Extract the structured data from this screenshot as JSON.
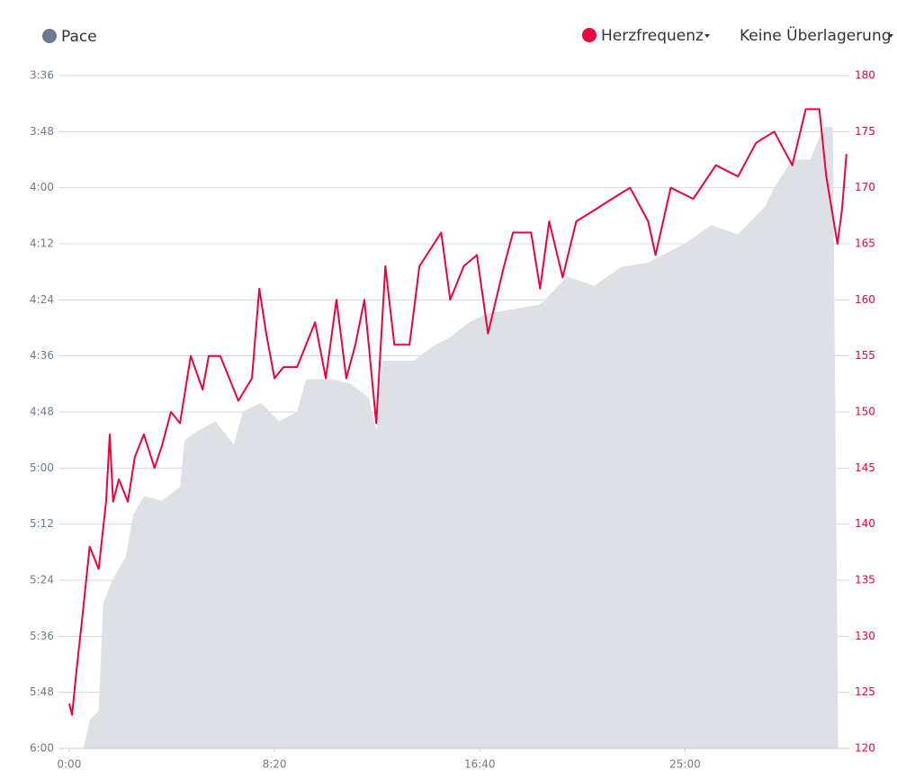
{
  "chart_data": {
    "type": "line",
    "x_ticks_label": "time",
    "xlim": [
      -26,
      1900
    ],
    "xticks": [
      {
        "value": 0,
        "label": "0:00"
      },
      {
        "value": 500,
        "label": "8:20"
      },
      {
        "value": 1000,
        "label": "16:40"
      },
      {
        "value": 1500,
        "label": "25:00"
      }
    ],
    "ylim": [
      360,
      216
    ],
    "yticks": [
      {
        "value": 216,
        "label": "3:36"
      },
      {
        "value": 228,
        "label": "3:48"
      },
      {
        "value": 240,
        "label": "4:00"
      },
      {
        "value": 252,
        "label": "4:12"
      },
      {
        "value": 264,
        "label": "4:24"
      },
      {
        "value": 276,
        "label": "4:36"
      },
      {
        "value": 288,
        "label": "4:48"
      },
      {
        "value": 300,
        "label": "5:00"
      },
      {
        "value": 312,
        "label": "5:12"
      },
      {
        "value": 324,
        "label": "5:24"
      },
      {
        "value": 336,
        "label": "5:36"
      },
      {
        "value": 348,
        "label": "5:48"
      },
      {
        "value": 360,
        "label": "6:00"
      }
    ],
    "y2lim": [
      120,
      180
    ],
    "y2ticks": [
      120,
      125,
      130,
      135,
      140,
      145,
      150,
      155,
      160,
      165,
      170,
      175,
      180
    ],
    "grid": true,
    "overlay": "Keine Überlagerung",
    "series": [
      {
        "name": "Pace",
        "color": "#6b7c8c",
        "fill": "#dde0e4",
        "area": true,
        "x": [
          35,
          50,
          72,
          83,
          105,
          138,
          156,
          182,
          226,
          270,
          281,
          314,
          357,
          401,
          423,
          467,
          511,
          555,
          577,
          642,
          686,
          730,
          748,
          763,
          840,
          884,
          928,
          971,
          1015,
          1081,
          1147,
          1213,
          1279,
          1344,
          1410,
          1498,
          1564,
          1629,
          1695,
          1717,
          1761,
          1805,
          1838,
          1860,
          1873
        ],
        "values": [
          360,
          354,
          352,
          329,
          324,
          319,
          310,
          306,
          307,
          304,
          294,
          292,
          290,
          295,
          288,
          286,
          290,
          288,
          281,
          281,
          282,
          285,
          292,
          277,
          277,
          274,
          272,
          269,
          267,
          266,
          265,
          259,
          261,
          257,
          256,
          252,
          248,
          250,
          244,
          240,
          234,
          234,
          227,
          227,
          360
        ]
      },
      {
        "name": "Herzfrequenz",
        "color": "#f0003c",
        "axis": "y2",
        "area": false,
        "x": [
          0,
          7,
          18,
          33,
          50,
          72,
          90,
          99,
          107,
          121,
          143,
          160,
          182,
          208,
          226,
          248,
          270,
          296,
          325,
          340,
          368,
          390,
          412,
          445,
          463,
          480,
          500,
          522,
          555,
          577,
          599,
          625,
          651,
          675,
          697,
          719,
          748,
          770,
          792,
          829,
          853,
          906,
          928,
          961,
          993,
          1020,
          1059,
          1081,
          1125,
          1147,
          1169,
          1202,
          1235,
          1279,
          1322,
          1366,
          1410,
          1428,
          1465,
          1520,
          1575,
          1629,
          1673,
          1717,
          1761,
          1794,
          1827,
          1844,
          1871,
          1882,
          1893
        ],
        "values": [
          124,
          123,
          127,
          132,
          138,
          136,
          142,
          148,
          142,
          144,
          142,
          146,
          148,
          145,
          147,
          150,
          149,
          155,
          152,
          155,
          155,
          153,
          151,
          153,
          161,
          157,
          153,
          154,
          154,
          156,
          158,
          153,
          160,
          153,
          156,
          160,
          149,
          163,
          156,
          156,
          163,
          166,
          160,
          163,
          164,
          157,
          163,
          166,
          166,
          161,
          167,
          162,
          167,
          168,
          169,
          170,
          167,
          164,
          170,
          169,
          172,
          171,
          174,
          175,
          172,
          177,
          177,
          171,
          165,
          168,
          173
        ]
      }
    ]
  }
}
